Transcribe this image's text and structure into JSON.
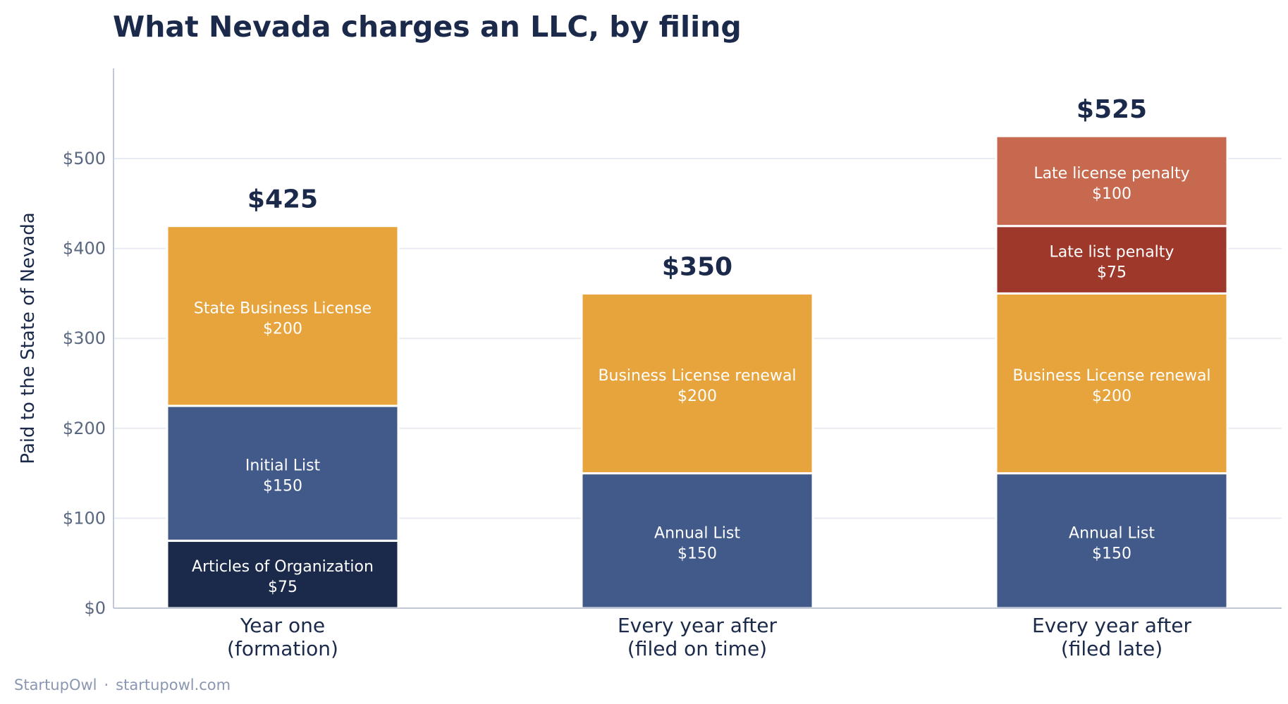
{
  "title": "What Nevada charges an LLC, by filing",
  "footer": {
    "brand": "StartupOwl",
    "separator": "·",
    "site": "startupowl.com"
  },
  "colors": {
    "text_dark": "#1b2a4a",
    "tick_text": "#5a6781",
    "grid": "#e8ebf2",
    "axis": "#c2c8d6",
    "segment_label": "#ffffff"
  },
  "chart_data": {
    "type": "bar",
    "stacked": true,
    "ylabel": "Paid to the State of Nevada",
    "ylim": [
      0,
      600
    ],
    "yticks": [
      0,
      100,
      200,
      300,
      400,
      500
    ],
    "ytick_labels": [
      "$0",
      "$100",
      "$200",
      "$300",
      "$400",
      "$500"
    ],
    "grid": true,
    "bars": [
      {
        "category_lines": [
          "Year one",
          "(formation)"
        ],
        "total_label": "$425",
        "segments": [
          {
            "name": "Articles of Organization",
            "value": 75,
            "label": "$75",
            "color": "#1b2a4a"
          },
          {
            "name": "Initial List",
            "value": 150,
            "label": "$150",
            "color": "#415a89"
          },
          {
            "name": "State Business License",
            "value": 200,
            "label": "$200",
            "color": "#e8a43c"
          }
        ]
      },
      {
        "category_lines": [
          "Every year after",
          "(filed on time)"
        ],
        "total_label": "$350",
        "segments": [
          {
            "name": "Annual List",
            "value": 150,
            "label": "$150",
            "color": "#415a89"
          },
          {
            "name": "Business License renewal",
            "value": 200,
            "label": "$200",
            "color": "#e8a43c"
          }
        ]
      },
      {
        "category_lines": [
          "Every year after",
          "(filed late)"
        ],
        "total_label": "$525",
        "segments": [
          {
            "name": "Annual List",
            "value": 150,
            "label": "$150",
            "color": "#415a89"
          },
          {
            "name": "Business License renewal",
            "value": 200,
            "label": "$200",
            "color": "#e8a43c"
          },
          {
            "name": "Late list penalty",
            "value": 75,
            "label": "$75",
            "color": "#9e382b"
          },
          {
            "name": "Late license penalty",
            "value": 100,
            "label": "$100",
            "color": "#c7694f"
          }
        ]
      }
    ]
  }
}
